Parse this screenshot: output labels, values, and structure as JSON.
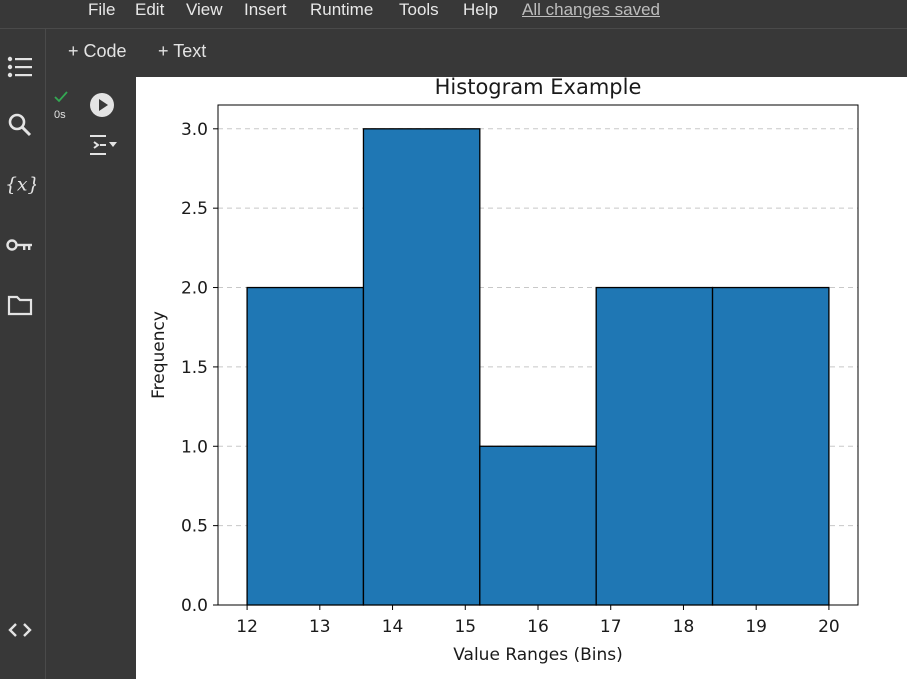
{
  "menu": {
    "items": [
      "File",
      "Edit",
      "View",
      "Insert",
      "Runtime",
      "Tools",
      "Help"
    ],
    "status": "All changes saved"
  },
  "toolbar": {
    "add_code": "+ Code",
    "add_text": "+ Text"
  },
  "cell": {
    "exec_time": "0s",
    "status_icon": "check-icon"
  },
  "sidebar": {
    "icons": [
      "table-of-contents-icon",
      "search-icon",
      "variables-icon",
      "secrets-key-icon",
      "files-folder-icon",
      "code-snippets-icon"
    ]
  },
  "colors": {
    "bar_fill": "#1f77b4",
    "bar_edge": "#000000",
    "check": "#34a853"
  },
  "chart_data": {
    "type": "bar",
    "title": "Histogram Example",
    "xlabel": "Value Ranges (Bins)",
    "ylabel": "Frequency",
    "bin_edges": [
      12.0,
      13.6,
      15.2,
      16.8,
      18.4,
      20.0
    ],
    "values": [
      2,
      3,
      1,
      2,
      2
    ],
    "xlim": [
      11.6,
      20.4
    ],
    "ylim": [
      0,
      3.15
    ],
    "xticks": [
      "12",
      "13",
      "14",
      "15",
      "16",
      "17",
      "18",
      "19",
      "20"
    ],
    "yticks": [
      "0.0",
      "0.5",
      "1.0",
      "1.5",
      "2.0",
      "2.5",
      "3.0"
    ],
    "grid": "y-dashed"
  }
}
